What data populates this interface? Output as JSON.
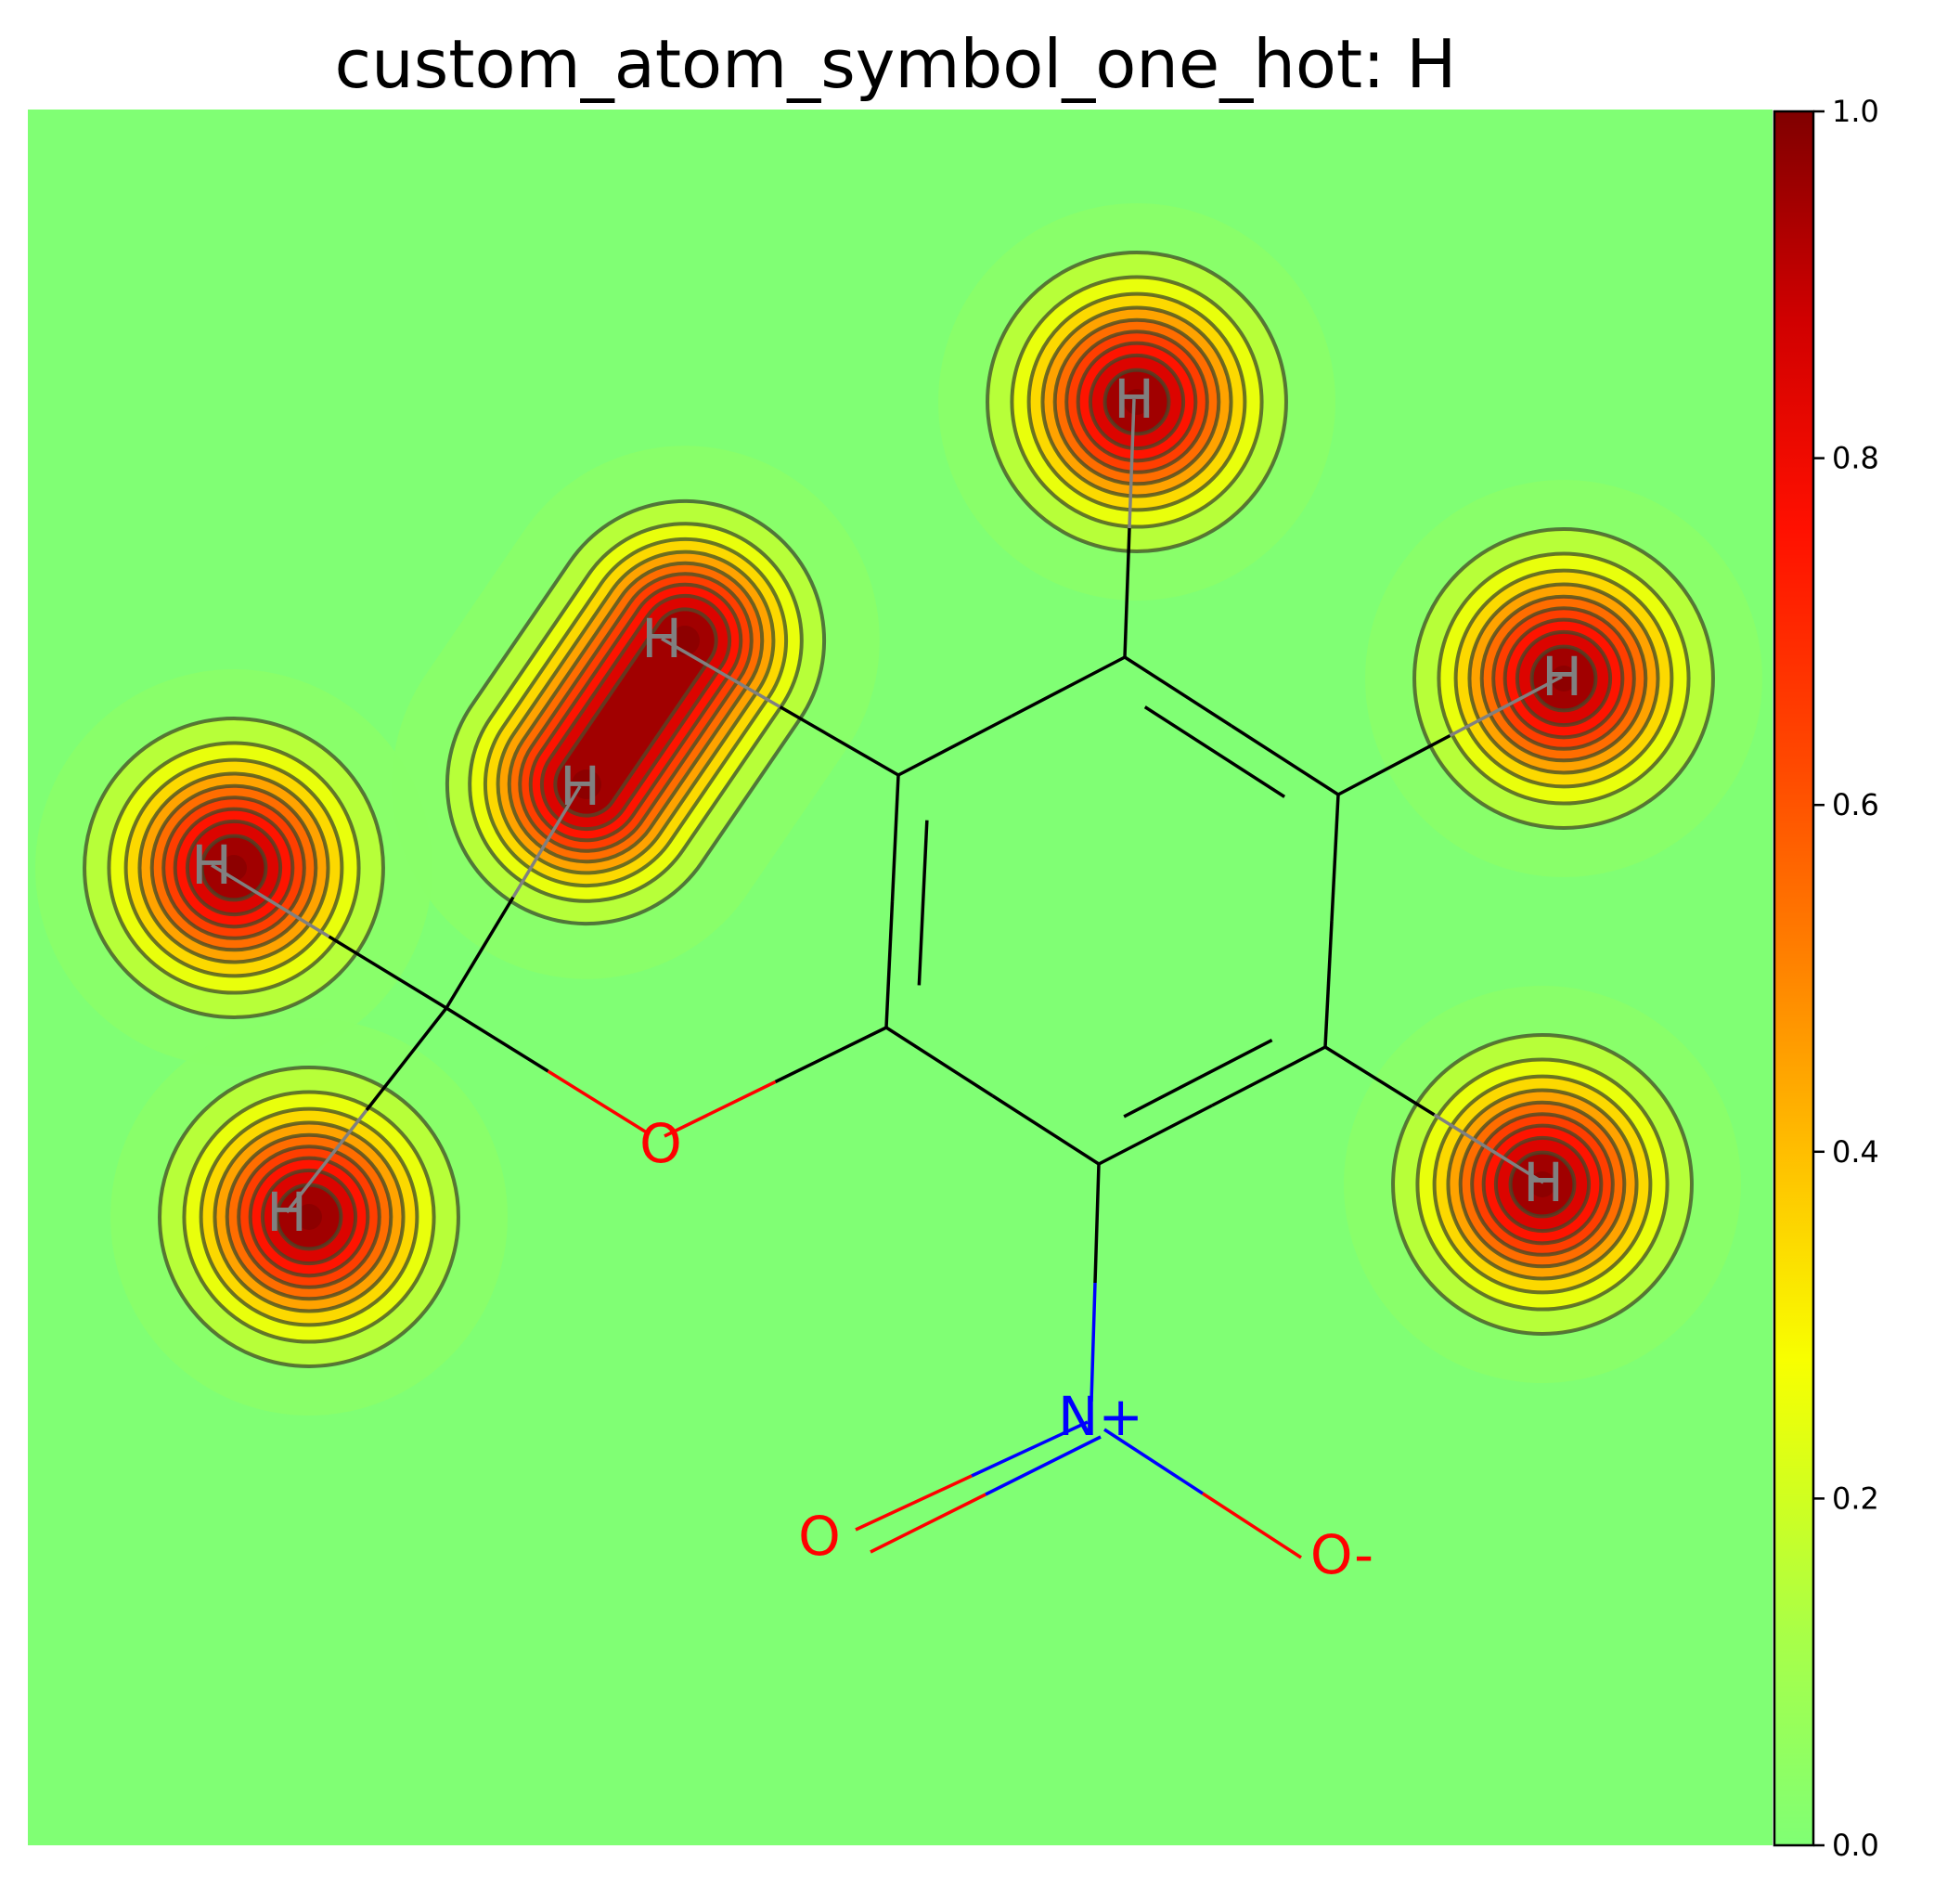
{
  "chart_data": {
    "type": "heatmap",
    "title": "custom_atom_symbol_one_hot: H",
    "colorbar": {
      "colormap": "jet-like (green to yellow to red to dark red)",
      "range": [
        0.0,
        1.0
      ],
      "ticks": [
        "0.0",
        "0.2",
        "0.4",
        "0.6",
        "0.8",
        "1.0"
      ],
      "colors": [
        "#80ff74",
        "#e8ff1a",
        "#ffcf00",
        "#ff6a00",
        "#ff1a00",
        "#e00000",
        "#800000"
      ]
    },
    "contour_levels": [
      0.1,
      0.2,
      0.3,
      0.4,
      0.5,
      0.6,
      0.7,
      0.8,
      0.9
    ],
    "atoms": [
      {
        "symbol": "H",
        "value": 1.0,
        "color": "#808080"
      },
      {
        "symbol": "H",
        "value": 1.0,
        "color": "#808080"
      },
      {
        "symbol": "H",
        "value": 1.0,
        "color": "#808080"
      },
      {
        "symbol": "H",
        "value": 1.0,
        "color": "#808080"
      },
      {
        "symbol": "H",
        "value": 1.0,
        "color": "#808080"
      },
      {
        "symbol": "H",
        "value": 1.0,
        "color": "#808080"
      },
      {
        "symbol": "H",
        "value": 1.0,
        "color": "#808080"
      },
      {
        "symbol": "O",
        "value": 0.0,
        "color": "#ff0000"
      },
      {
        "symbol": "N+",
        "value": 0.0,
        "color": "#0000ff"
      },
      {
        "symbol": "O",
        "value": 0.0,
        "color": "#ff0000"
      },
      {
        "symbol": "O-",
        "value": 0.0,
        "color": "#ff0000"
      }
    ],
    "bond_colors": {
      "carbon": "#000000",
      "hydrogen": "#808080",
      "oxygen": "#ff0000",
      "nitrogen": "#0000ff"
    }
  }
}
